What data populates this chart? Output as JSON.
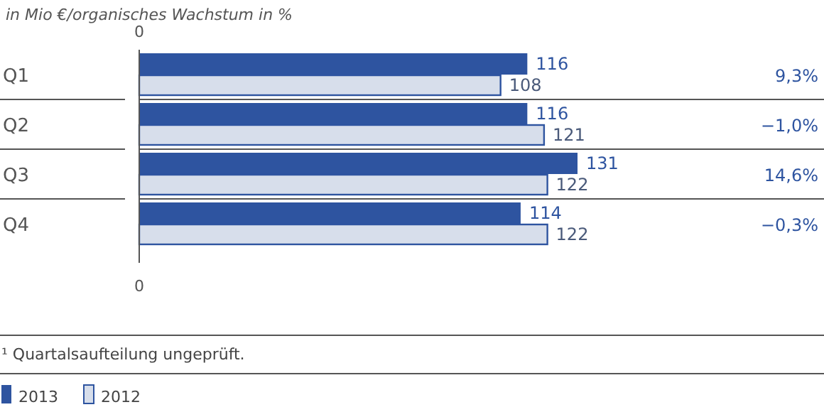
{
  "chart_data": {
    "type": "bar",
    "orientation": "horizontal",
    "title": "in Mio €/organisches Wachstum in %",
    "categories": [
      "Q1",
      "Q2",
      "Q3",
      "Q4"
    ],
    "series": [
      {
        "name": "2013",
        "color": "#2e54a0",
        "values": [
          116,
          116,
          131,
          114
        ]
      },
      {
        "name": "2012",
        "color": "#d7deeb",
        "values": [
          108,
          121,
          122,
          122
        ]
      }
    ],
    "data_labels": true,
    "legend": "bottom left",
    "value_labels": [
      "9,3%",
      "−1,0%",
      "14,6%",
      "−0,3%"
    ],
    "annotations": [
      "0",
      "0",
      "¹ Quartalsaufteilung ungeprüft."
    ]
  }
}
